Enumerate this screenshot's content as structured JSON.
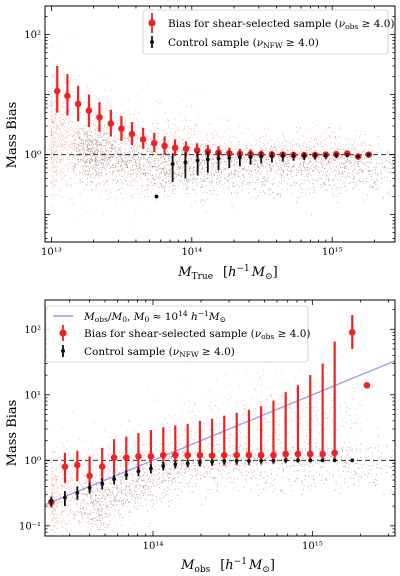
{
  "chart_data": [
    {
      "type": "scatter",
      "xscale": "log",
      "yscale": "log",
      "xlim": [
        9000000000000,
        2800000000000000
      ],
      "ylim": [
        0.035,
        300
      ],
      "xticks": [
        {
          "value": 10000000000000,
          "label": "10¹³"
        },
        {
          "value": 100000000000000,
          "label": "10¹⁴"
        },
        {
          "value": 1000000000000000,
          "label": "10¹⁵"
        }
      ],
      "yticks": [
        {
          "value": 1,
          "label": "10⁰"
        },
        {
          "value": 100,
          "label": "10²"
        }
      ],
      "xlabel": "M_True [h⁻¹ M_⊙]",
      "ylabel": "Mass Bias",
      "reference_line": 1,
      "legend": "top-right",
      "series": [
        {
          "name": "Bias for shear-selected sample (ν_obs ≥ 4.0)",
          "color": "#ee2222",
          "x": [
            11000000000000,
            13000000000000,
            15500000000000,
            18500000000000,
            22000000000000,
            26500000000000,
            31500000000000,
            37500000000000,
            45000000000000,
            54000000000000,
            64000000000000,
            76000000000000,
            91000000000000,
            109000000000000,
            130000000000000,
            155000000000000,
            185000000000000,
            220000000000000,
            262000000000000,
            312000000000000,
            372000000000000,
            445000000000000,
            530000000000000,
            632000000000000,
            755000000000000,
            900000000000000,
            1070000000000000,
            1280000000000000,
            1530000000000000,
            1820000000000000
          ],
          "y": [
            11.5,
            9.5,
            7,
            5.4,
            4.2,
            3.3,
            2.7,
            2.2,
            1.8,
            1.55,
            1.4,
            1.3,
            1.25,
            1.18,
            1.12,
            1.08,
            1.05,
            1.03,
            1.02,
            1.01,
            1,
            1,
            0.99,
            0.98,
            0.99,
            1.0,
            1.02,
            1.04,
            0.93,
            1.0
          ],
          "y_low": [
            5.0,
            4.5,
            3.6,
            2.9,
            2.4,
            2.0,
            1.7,
            1.45,
            1.25,
            1.1,
            1.0,
            0.95,
            0.92,
            0.9,
            0.88,
            0.87,
            0.87,
            0.87,
            0.87,
            0.88,
            0.88,
            0.89,
            0.89,
            0.9,
            0.91,
            0.92,
            0.95,
            0.98,
            0.9,
            0.97
          ],
          "y_high": [
            30,
            22,
            14,
            10,
            7.5,
            5.6,
            4.4,
            3.5,
            2.8,
            2.3,
            2.0,
            1.8,
            1.65,
            1.55,
            1.45,
            1.38,
            1.3,
            1.25,
            1.22,
            1.18,
            1.15,
            1.12,
            1.1,
            1.08,
            1.07,
            1.07,
            1.08,
            1.09,
            0.97,
            1.03
          ]
        },
        {
          "name": "Control sample (ν_NFW ≥ 4.0)",
          "color": "#111111",
          "x": [
            56000000000000,
            73000000000000,
            90000000000000,
            110000000000000,
            130000000000000,
            155000000000000,
            185000000000000,
            220000000000000,
            262000000000000,
            312000000000000,
            372000000000000,
            445000000000000,
            530000000000000,
            632000000000000,
            755000000000000,
            900000000000000,
            1070000000000000,
            1280000000000000,
            1530000000000000,
            1820000000000000
          ],
          "y": [
            0.2,
            0.7,
            0.75,
            0.8,
            0.83,
            0.86,
            0.88,
            0.9,
            0.91,
            0.93,
            0.94,
            0.95,
            0.95,
            0.96,
            0.97,
            0.97,
            0.98,
            0.99,
            0.93,
            1.0
          ],
          "y_low": [
            0.2,
            0.35,
            0.4,
            0.45,
            0.5,
            0.55,
            0.6,
            0.64,
            0.68,
            0.71,
            0.74,
            0.77,
            0.79,
            0.81,
            0.83,
            0.85,
            0.88,
            0.9,
            0.88,
            0.97
          ],
          "y_high": [
            0.2,
            1.05,
            1.1,
            1.12,
            1.14,
            1.14,
            1.14,
            1.13,
            1.12,
            1.11,
            1.1,
            1.09,
            1.08,
            1.07,
            1.07,
            1.06,
            1.06,
            1.05,
            0.97,
            1.03
          ]
        }
      ]
    },
    {
      "type": "scatter",
      "xscale": "log",
      "yscale": "log",
      "xlim": [
        21000000000000,
        3300000000000000
      ],
      "ylim": [
        0.07,
        280
      ],
      "xticks": [
        {
          "value": 100000000000000,
          "label": "10¹⁴"
        },
        {
          "value": 1000000000000000,
          "label": "10¹⁵"
        }
      ],
      "yticks": [
        {
          "value": 0.1,
          "label": "10⁻¹"
        },
        {
          "value": 1,
          "label": "10⁰"
        },
        {
          "value": 10,
          "label": "10¹"
        },
        {
          "value": 100,
          "label": "10²"
        }
      ],
      "xlabel": "M_obs [h⁻¹ M_⊙]",
      "ylabel": "Mass Bias",
      "reference_line": 1,
      "legend": "top-left",
      "model_line": {
        "name": "M_obs/M₀,   M₀ ≈ 10¹⁴ h⁻¹ M_⊙",
        "color": "#9999ee",
        "m0": 100000000000000
      },
      "series": [
        {
          "name": "Bias for shear-selected sample (ν_obs ≥ 4.0)",
          "color": "#ee2222",
          "x": [
            23000000000000,
            28000000000000,
            33500000000000,
            40000000000000,
            48000000000000,
            57000000000000,
            68000000000000,
            81000000000000,
            97000000000000,
            116000000000000,
            138000000000000,
            165000000000000,
            197000000000000,
            235000000000000,
            280000000000000,
            335000000000000,
            400000000000000,
            477000000000000,
            570000000000000,
            680000000000000,
            812000000000000,
            970000000000000,
            1160000000000000,
            1380000000000000,
            1780000000000000,
            2200000000000000
          ],
          "y": [
            0.23,
            0.8,
            0.85,
            0.58,
            0.8,
            1.1,
            1.1,
            1.15,
            1.15,
            1.2,
            1.2,
            1.2,
            1.2,
            1.18,
            1.2,
            1.2,
            1.2,
            1.2,
            1.2,
            1.25,
            1.25,
            1.25,
            1.25,
            1.3,
            90,
            14
          ],
          "y_low": [
            0.19,
            0.45,
            0.48,
            0.33,
            0.5,
            0.62,
            0.65,
            0.7,
            0.72,
            0.75,
            0.77,
            0.78,
            0.8,
            0.82,
            0.83,
            0.84,
            0.85,
            0.86,
            0.88,
            0.9,
            0.92,
            0.93,
            0.95,
            0.98,
            50,
            14
          ],
          "y_high": [
            0.26,
            1.3,
            1.4,
            1.15,
            1.55,
            2.1,
            2.3,
            2.6,
            2.9,
            3.2,
            3.4,
            3.6,
            4.0,
            4.3,
            4.8,
            5.3,
            5.9,
            6.7,
            8.2,
            11,
            14,
            20,
            30,
            65,
            165,
            14
          ]
        },
        {
          "name": "Control sample (ν_NFW ≥ 4.0)",
          "color": "#111111",
          "x": [
            23000000000000,
            28000000000000,
            33500000000000,
            40000000000000,
            48000000000000,
            57000000000000,
            68000000000000,
            81000000000000,
            97000000000000,
            116000000000000,
            138000000000000,
            165000000000000,
            197000000000000,
            235000000000000,
            280000000000000,
            335000000000000,
            400000000000000,
            477000000000000,
            570000000000000,
            680000000000000,
            812000000000000,
            970000000000000,
            1160000000000000,
            1380000000000000,
            1780000000000000
          ],
          "y": [
            0.24,
            0.27,
            0.32,
            0.38,
            0.44,
            0.52,
            0.6,
            0.68,
            0.75,
            0.82,
            0.87,
            0.9,
            0.93,
            0.95,
            0.97,
            0.98,
            0.98,
            0.99,
            0.99,
            1,
            1,
            1,
            1,
            1,
            1
          ],
          "y_low": [
            0.2,
            0.2,
            0.25,
            0.31,
            0.36,
            0.43,
            0.5,
            0.57,
            0.63,
            0.7,
            0.75,
            0.79,
            0.82,
            0.85,
            0.87,
            0.89,
            0.9,
            0.92,
            0.93,
            0.95,
            0.96,
            0.97,
            0.97,
            0.98,
            0.99
          ],
          "y_high": [
            0.28,
            0.34,
            0.4,
            0.46,
            0.53,
            0.61,
            0.7,
            0.79,
            0.87,
            0.94,
            0.99,
            1.01,
            1.03,
            1.04,
            1.05,
            1.05,
            1.05,
            1.05,
            1.05,
            1.05,
            1.04,
            1.04,
            1.03,
            1.02,
            1.01
          ]
        }
      ]
    }
  ]
}
